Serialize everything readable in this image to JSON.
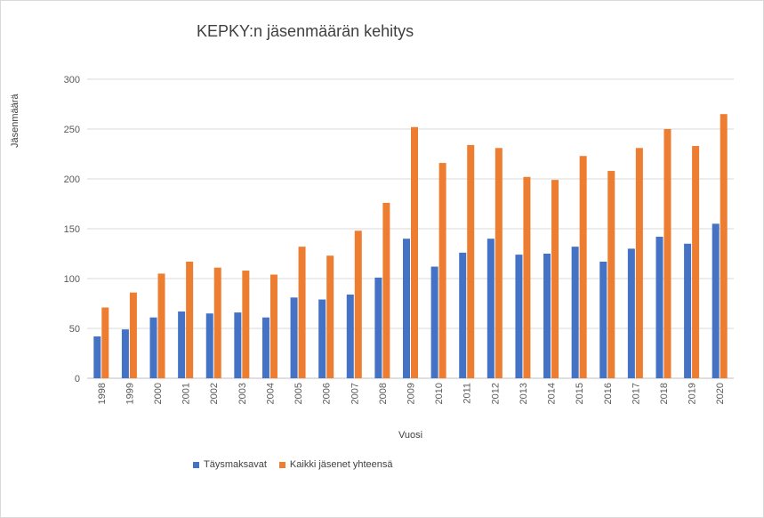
{
  "chart_data": {
    "type": "bar",
    "title": "KEPKY:n jäsenmäärän kehitys",
    "xlabel": "Vuosi",
    "ylabel": "Jäsenmäärä",
    "ylim": [
      0,
      300
    ],
    "yticks": [
      0,
      50,
      100,
      150,
      200,
      250,
      300
    ],
    "grid": true,
    "legend_position": "bottom",
    "categories": [
      "1998",
      "1999",
      "2000",
      "2001",
      "2002",
      "2003",
      "2004",
      "2005",
      "2006",
      "2007",
      "2008",
      "2009",
      "2010",
      "2011",
      "2012",
      "2013",
      "2014",
      "2015",
      "2016",
      "2017",
      "2018",
      "2019",
      "2020"
    ],
    "series": [
      {
        "name": "Täysmaksavat",
        "color": "#4472c4",
        "values": [
          42,
          49,
          61,
          67,
          65,
          66,
          61,
          81,
          79,
          84,
          101,
          140,
          112,
          126,
          140,
          124,
          125,
          132,
          117,
          130,
          142,
          135,
          155
        ]
      },
      {
        "name": "Kaikki jäsenet yhteensä",
        "color": "#ed7d31",
        "values": [
          71,
          86,
          105,
          117,
          111,
          108,
          104,
          132,
          123,
          148,
          176,
          252,
          216,
          234,
          231,
          202,
          199,
          223,
          208,
          231,
          250,
          233,
          265
        ]
      }
    ]
  }
}
